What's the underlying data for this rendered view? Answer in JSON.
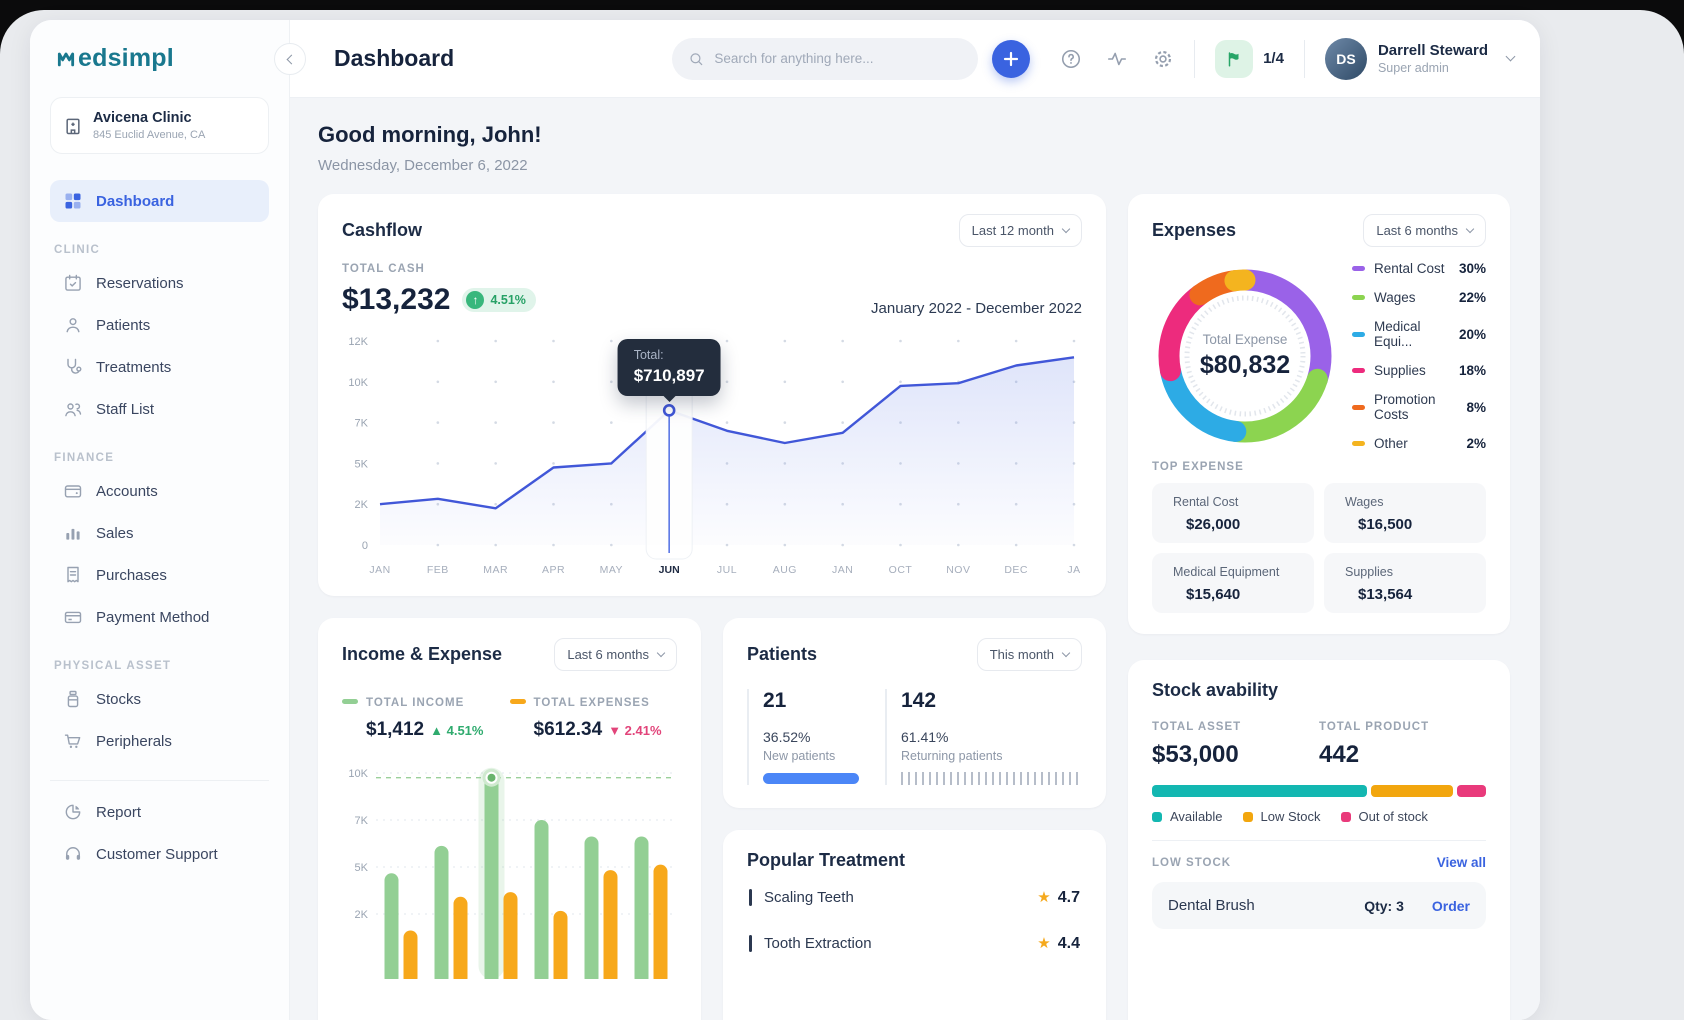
{
  "sidebar": {
    "logo_text": "edsimpl",
    "clinic": {
      "name": "Avicena Clinic",
      "address": "845 Euclid Avenue, CA"
    },
    "dashboard_label": "Dashboard",
    "sections": [
      {
        "label": "CLINIC",
        "items": [
          {
            "label": "Reservations"
          },
          {
            "label": "Patients"
          },
          {
            "label": "Treatments"
          },
          {
            "label": "Staff List"
          }
        ]
      },
      {
        "label": "FINANCE",
        "items": [
          {
            "label": "Accounts"
          },
          {
            "label": "Sales"
          },
          {
            "label": "Purchases"
          },
          {
            "label": "Payment Method"
          }
        ]
      },
      {
        "label": "PHYSICAL ASSET",
        "items": [
          {
            "label": "Stocks"
          },
          {
            "label": "Peripherals"
          }
        ]
      }
    ],
    "footer_items": [
      {
        "label": "Report"
      },
      {
        "label": "Customer Support"
      }
    ]
  },
  "header": {
    "title": "Dashboard",
    "search_placeholder": "Search for anything here...",
    "flag_count": "1/4",
    "user": {
      "name": "Darrell Steward",
      "role": "Super admin",
      "initials": "DS"
    }
  },
  "greeting": {
    "title": "Good morning, John!",
    "date": "Wednesday, December 6, 2022"
  },
  "cashflow": {
    "title": "Cashflow",
    "range_label": "Last 12 month",
    "total_label": "TOTAL CASH",
    "total_value": "$13,232",
    "delta": "4.51%",
    "period": "January 2022 - December 2022",
    "tooltip": {
      "label": "Total:",
      "value": "$710,897"
    }
  },
  "expenses": {
    "title": "Expenses",
    "range_label": "Last 6 months",
    "center_label": "Total Expense",
    "center_value": "$80,832",
    "legend": [
      {
        "name": "Rental Cost",
        "pct": "30%",
        "color": "#9a62e8"
      },
      {
        "name": "Wages",
        "pct": "22%",
        "color": "#8cd450"
      },
      {
        "name": "Medical Equi...",
        "pct": "20%",
        "color": "#2dabe5"
      },
      {
        "name": "Supplies",
        "pct": "18%",
        "color": "#ed2b7d"
      },
      {
        "name": "Promotion Costs",
        "pct": "8%",
        "color": "#ef6a1e"
      },
      {
        "name": "Other",
        "pct": "2%",
        "color": "#f4b41f"
      }
    ],
    "top_expense_label": "TOP EXPENSE",
    "top_items": [
      {
        "name": "Rental Cost",
        "value": "$26,000",
        "color": "#9a62e8"
      },
      {
        "name": "Wages",
        "value": "$16,500",
        "color": "#2dabe5"
      },
      {
        "name": "Medical Equipment",
        "value": "$15,640",
        "color": "#2dabe5"
      },
      {
        "name": "Supplies",
        "value": "$13,564",
        "color": "#ed2b7d"
      }
    ]
  },
  "income_expense": {
    "title": "Income & Expense",
    "range_label": "Last 6 months",
    "income_label": "TOTAL INCOME",
    "income_value": "$1,412",
    "income_delta": "4.51%",
    "expense_label": "TOTAL EXPENSES",
    "expense_value": "$612.34",
    "expense_delta": "2.41%"
  },
  "patients": {
    "title": "Patients",
    "range_label": "This month",
    "stats": [
      {
        "value": "21",
        "pct": "36.52%",
        "label": "New patients"
      },
      {
        "value": "142",
        "pct": "61.41%",
        "label": "Returning patients"
      }
    ]
  },
  "popular_treatment": {
    "title": "Popular Treatment",
    "rows": [
      {
        "name": "Scaling Teeth",
        "rating": "4.7"
      },
      {
        "name": "Tooth Extraction",
        "rating": "4.4"
      }
    ]
  },
  "stock": {
    "title": "Stock avability",
    "asset_label": "TOTAL ASSET",
    "asset_value": "$53,000",
    "product_label": "TOTAL PRODUCT",
    "product_value": "442",
    "segments_pct": [
      66,
      25,
      9
    ],
    "legend": [
      {
        "label": "Available",
        "color": "#13b7b1"
      },
      {
        "label": "Low Stock",
        "color": "#f2a60e"
      },
      {
        "label": "Out of stock",
        "color": "#e93a7b"
      }
    ],
    "low_stock_label": "LOW STOCK",
    "view_all": "View all",
    "rows": [
      {
        "name": "Dental Brush",
        "qty": "Qty: 3",
        "action": "Order"
      }
    ]
  },
  "chart_data": [
    {
      "id": "cashflow-line",
      "type": "line",
      "title": "Cashflow",
      "x": [
        "JAN",
        "FEB",
        "MAR",
        "APR",
        "MAY",
        "JUN",
        "JUL",
        "AUG",
        "JAN",
        "OCT",
        "NOV",
        "DEC",
        "JA"
      ],
      "values_k": [
        2.0,
        2.4,
        1.8,
        4.7,
        5.0,
        7.9,
        6.6,
        6.0,
        6.5,
        9.7,
        9.9,
        10.8,
        11.2
      ],
      "y_ticks": [
        {
          "label": "12K",
          "v": 12
        },
        {
          "label": "10K",
          "v": 10
        },
        {
          "label": "7K",
          "v": 7
        },
        {
          "label": "5K",
          "v": 5
        },
        {
          "label": "2K",
          "v": 2
        },
        {
          "label": "0",
          "v": 0
        }
      ],
      "highlight_index": 5,
      "tooltip_total": "$710,897",
      "line_color": "#4157d8",
      "legend_position": "none",
      "grid": "dots"
    },
    {
      "id": "expenses-donut",
      "type": "pie",
      "title": "Expenses",
      "center_label": "Total Expense",
      "center_value": "$80,832",
      "slices": [
        {
          "label": "Rental Cost",
          "pct": 30,
          "color": "#9a62e8"
        },
        {
          "label": "Wages",
          "pct": 22,
          "color": "#8cd450"
        },
        {
          "label": "Medical Equi...",
          "pct": 20,
          "color": "#2dabe5"
        },
        {
          "label": "Supplies",
          "pct": 18,
          "color": "#ed2b7d"
        },
        {
          "label": "Promotion Costs",
          "pct": 8,
          "color": "#ef6a1e"
        },
        {
          "label": "Other",
          "pct": 2,
          "color": "#f4b41f"
        }
      ],
      "legend_position": "right"
    },
    {
      "id": "income-expense-bars",
      "type": "bar",
      "title": "Income & Expense",
      "y_ticks": [
        {
          "label": "10K",
          "v": 10
        },
        {
          "label": "7K",
          "v": 7
        },
        {
          "label": "5K",
          "v": 5
        },
        {
          "label": "2K",
          "v": 2
        },
        {
          "label": "0",
          "v": 0
        }
      ],
      "series": [
        {
          "name": "Income",
          "color": "#93cf94",
          "values_k": [
            4.6,
            5.9,
            9.7,
            7.0,
            6.3,
            6.3
          ]
        },
        {
          "name": "Expenses",
          "color": "#f7a81b",
          "values_k": [
            1.3,
            3.1,
            3.4,
            2.2,
            4.8,
            5.1
          ]
        }
      ],
      "highlight_index": 2,
      "highlight_value_k": 9.7,
      "grid": "dotted-lines"
    }
  ]
}
